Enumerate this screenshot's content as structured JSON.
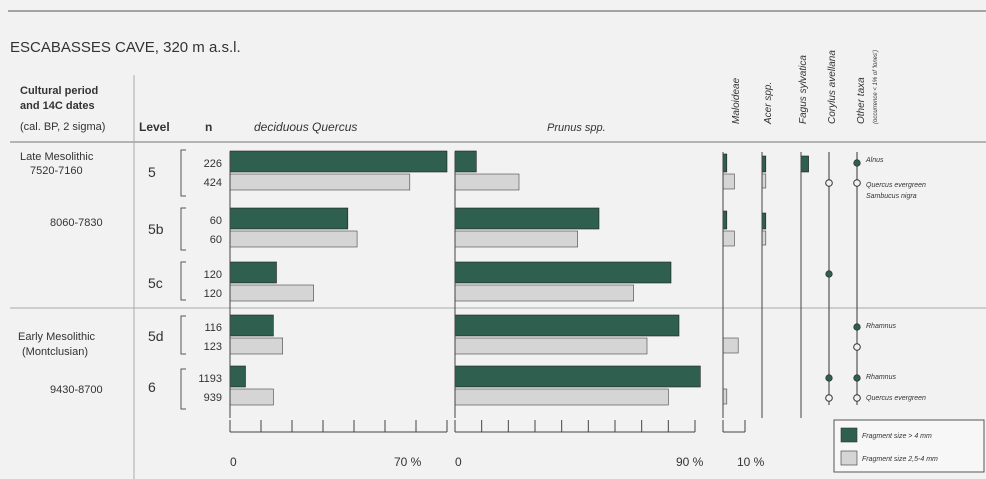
{
  "header": {
    "title": "ESCABASSES CAVE, 320 m a.s.l.",
    "period_col": [
      "Cultural period",
      "and 14C dates",
      "(cal. BP, 2 sigma)"
    ],
    "level_col": "Level",
    "n_col": "n"
  },
  "periods": {
    "late_name": [
      "Late Mesolithic",
      "7520-7160"
    ],
    "late_date2": "8060-7830",
    "early_name": [
      "Early Mesolithic",
      "(Montclusian)"
    ],
    "early_date2": "9430-8700"
  },
  "levels": [
    "5",
    "5b",
    "5c",
    "5d",
    "6"
  ],
  "counts": [
    {
      "large": "226",
      "small": "424"
    },
    {
      "large": "60",
      "small": "60"
    },
    {
      "large": "120",
      "small": "120"
    },
    {
      "large": "116",
      "small": "123"
    },
    {
      "large": "1193",
      "small": "939"
    }
  ],
  "chart_data": {
    "type": "bar",
    "categories": [
      "5",
      "5b",
      "5c",
      "5d",
      "6"
    ],
    "series_labels": {
      "large": "Fragment size > 4 mm",
      "small": "Fragment size 2,5-4 mm"
    },
    "colors": {
      "large": "#2f5f4e",
      "small": "#d5d5d5"
    },
    "panels": [
      {
        "label": "deciduous Quercus",
        "max": 70,
        "axis_left": "0",
        "axis_right": "70 %",
        "large": [
          70,
          38,
          15,
          14,
          5
        ],
        "small": [
          58,
          41,
          27,
          17,
          14
        ]
      },
      {
        "label": "Prunus spp.",
        "max": 90,
        "axis_left": "0",
        "axis_right": "90 %",
        "large": [
          8,
          54,
          81,
          84,
          92
        ],
        "small": [
          24,
          46,
          67,
          72,
          80
        ]
      },
      {
        "label": "Maloideae",
        "max": 10,
        "axis_right": "10 %",
        "large": [
          1,
          1,
          0,
          0,
          0
        ],
        "small": [
          3,
          3,
          0,
          4,
          1
        ]
      },
      {
        "label": "Acer spp.",
        "max": 10,
        "large": [
          1,
          1,
          0,
          0,
          0
        ],
        "small": [
          1,
          1,
          0,
          0,
          0
        ]
      },
      {
        "label": "Fagus sylvatica",
        "max": 10,
        "large": [
          2,
          0,
          0,
          0,
          0
        ],
        "small": [
          0,
          0,
          0,
          0,
          0
        ]
      }
    ],
    "dot_columns": [
      {
        "label": "Corylus avellana",
        "large": [
          false,
          false,
          true,
          false,
          true
        ],
        "small": [
          true,
          false,
          false,
          false,
          true
        ]
      },
      {
        "label": "Other taxa",
        "large": [
          true,
          false,
          false,
          true,
          true
        ],
        "small": [
          true,
          false,
          false,
          true,
          true
        ]
      }
    ],
    "other_taxa_note": "(occurrence < 1% of 'lones')",
    "other_taxa_labels": {
      "l5_large": "Alnus",
      "l5_small": "Quercus evergreen",
      "l5_small2": "Sambucus nigra",
      "l5d_large": "Rhamnus",
      "l6_large": "Rhamnus",
      "l6_small": "Quercus evergreen"
    }
  }
}
